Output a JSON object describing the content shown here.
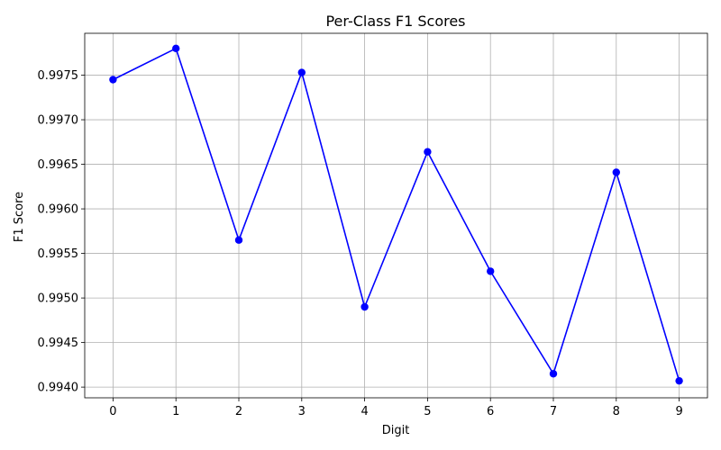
{
  "chart_data": {
    "type": "line",
    "title": "Per-Class F1 Scores",
    "xlabel": "Digit",
    "ylabel": "F1 Score",
    "x": [
      0,
      1,
      2,
      3,
      4,
      5,
      6,
      7,
      8,
      9
    ],
    "x_ticks": [
      "0",
      "1",
      "2",
      "3",
      "4",
      "5",
      "6",
      "7",
      "8",
      "9"
    ],
    "y_ticks": [
      0.994,
      0.9945,
      0.995,
      0.9955,
      0.996,
      0.9965,
      0.997,
      0.9975
    ],
    "y_tick_labels": [
      "0.9940",
      "0.9945",
      "0.9950",
      "0.9955",
      "0.9960",
      "0.9965",
      "0.9970",
      "0.9975"
    ],
    "xlim": [
      -0.45,
      9.45
    ],
    "ylim": [
      0.99388,
      0.99797
    ],
    "grid": true,
    "series": [
      {
        "color": "#0000ff",
        "marker": "circle",
        "values": [
          0.99745,
          0.9978,
          0.99565,
          0.99753,
          0.9949,
          0.99664,
          0.9953,
          0.99415,
          0.99641,
          0.99407
        ]
      }
    ]
  }
}
